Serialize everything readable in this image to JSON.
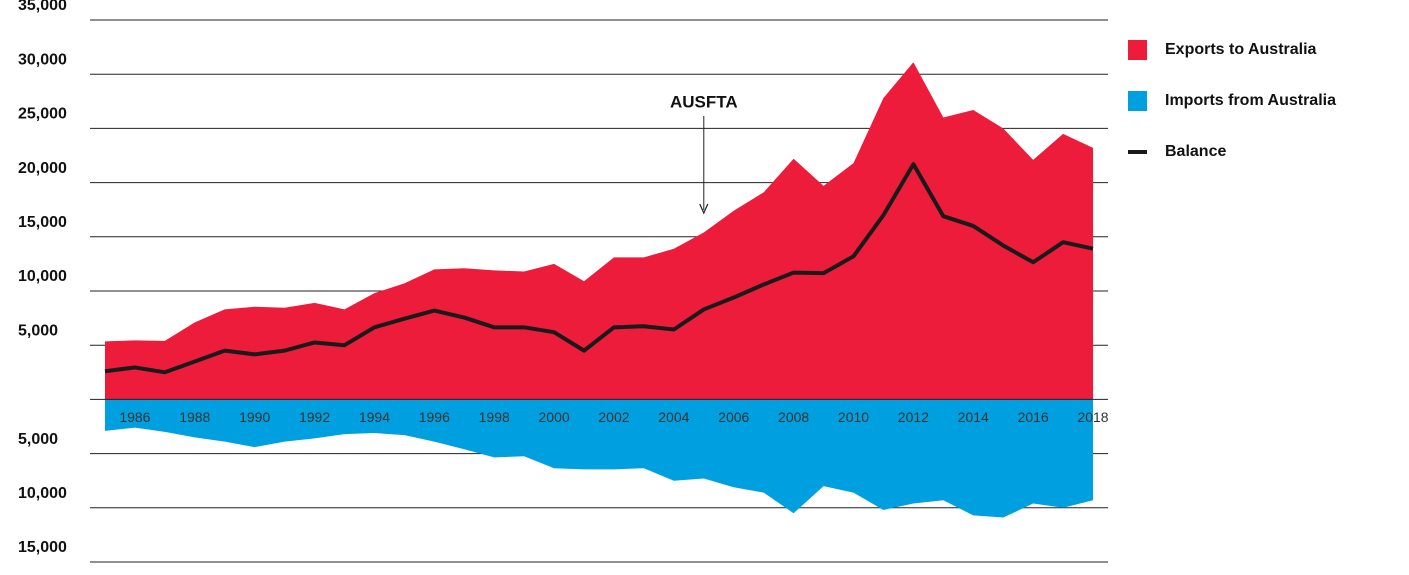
{
  "chart_data": {
    "type": "area",
    "x": [
      1985,
      1986,
      1987,
      1988,
      1989,
      1990,
      1991,
      1992,
      1993,
      1994,
      1995,
      1996,
      1997,
      1998,
      1999,
      2000,
      2001,
      2002,
      2003,
      2004,
      2005,
      2006,
      2007,
      2008,
      2009,
      2010,
      2011,
      2012,
      2013,
      2014,
      2015,
      2016,
      2017,
      2018
    ],
    "xlim": [
      1984.5,
      2018.5
    ],
    "xticks": [
      1986,
      1988,
      1990,
      1992,
      1994,
      1996,
      1998,
      2000,
      2002,
      2004,
      2006,
      2008,
      2010,
      2012,
      2014,
      2016,
      2018
    ],
    "ylim": [
      -15000,
      35000
    ],
    "yticks": [
      {
        "value": 35000,
        "label": "35,000"
      },
      {
        "value": 30000,
        "label": "30,000"
      },
      {
        "value": 25000,
        "label": "25,000"
      },
      {
        "value": 20000,
        "label": "20,000"
      },
      {
        "value": 15000,
        "label": "15,000"
      },
      {
        "value": 10000,
        "label": "10,000"
      },
      {
        "value": 5000,
        "label": "5,000"
      },
      {
        "value": -5000,
        "label": "5,000"
      },
      {
        "value": -10000,
        "label": "10,000"
      },
      {
        "value": -15000,
        "label": "15,000"
      }
    ],
    "grid": true,
    "legend": "right",
    "series": [
      {
        "name": "Exports to Australia",
        "color": "#ec1c3a",
        "kind": "area",
        "values": [
          5350,
          5450,
          5400,
          7100,
          8300,
          8550,
          8450,
          8900,
          8300,
          9800,
          10700,
          12000,
          12100,
          11900,
          11800,
          12500,
          10900,
          13100,
          13100,
          13900,
          15400,
          17400,
          19100,
          22200,
          19700,
          21800,
          27800,
          31100,
          26000,
          26700,
          25000,
          22100,
          24500,
          23200
        ]
      },
      {
        "name": "Imports from Australia",
        "color": "#009fdf",
        "kind": "area",
        "values": [
          -2900,
          -2600,
          -3000,
          -3500,
          -3900,
          -4400,
          -3900,
          -3600,
          -3200,
          -3100,
          -3300,
          -3900,
          -4600,
          -5350,
          -5250,
          -6350,
          -6450,
          -6450,
          -6350,
          -7500,
          -7300,
          -8100,
          -8600,
          -10500,
          -8000,
          -8600,
          -10200,
          -9600,
          -9300,
          -10700,
          -10900,
          -9600,
          -10000,
          -9300
        ]
      },
      {
        "name": "Balance",
        "color": "#1a1a1a",
        "kind": "line",
        "values": [
          2600,
          2950,
          2500,
          3500,
          4500,
          4150,
          4500,
          5250,
          5000,
          6650,
          7450,
          8200,
          7550,
          6650,
          6650,
          6200,
          4500,
          6650,
          6750,
          6450,
          8300,
          9400,
          10600,
          11700,
          11650,
          13200,
          17000,
          21700,
          16900,
          16000,
          14200,
          12650,
          14500,
          13900
        ]
      }
    ],
    "annotations": [
      {
        "text": "AUSFTA",
        "x": 2005
      }
    ]
  }
}
